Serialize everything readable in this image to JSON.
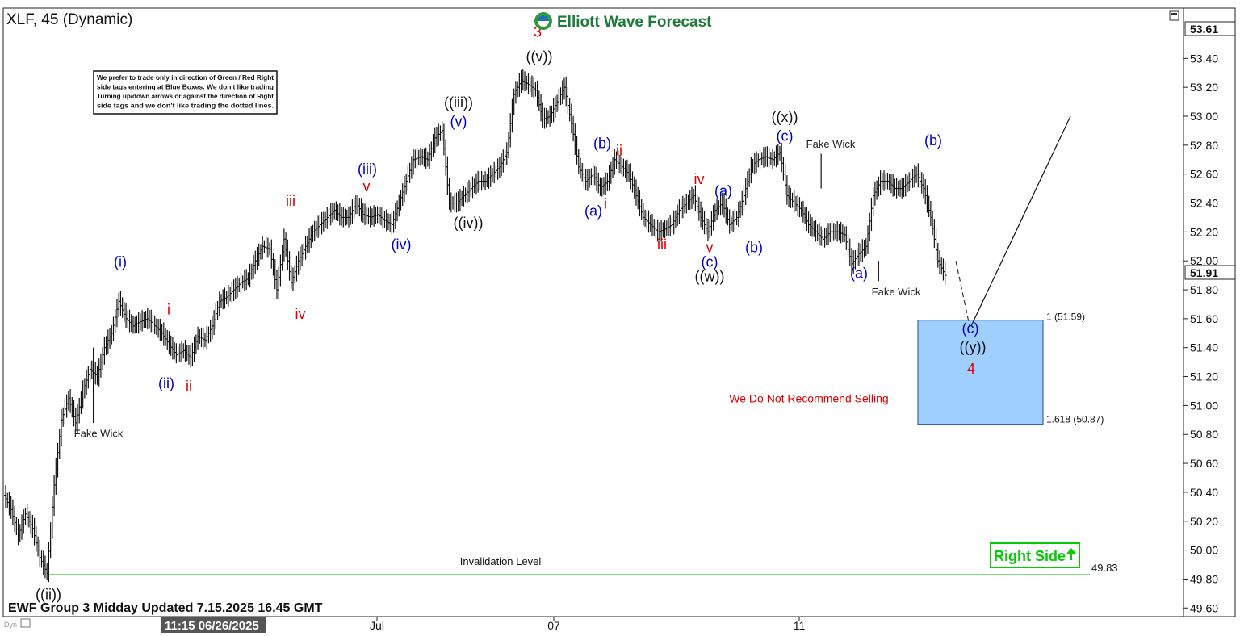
{
  "header": {
    "symbol_title": "XLF, 45 (Dynamic)",
    "brand": "Elliott Wave Forecast"
  },
  "note_box": {
    "lines": [
      "We prefer to trade only in direction of Green / Red Right",
      "side tags entering at Blue Boxes. We don't like trading",
      "Turning up/down arrows or against the direction of Right",
      "side tags and we don't like trading the dotted lines."
    ]
  },
  "footer": {
    "update_label": "EWF Group 3 Midday Updated 7.15.2025 16.45 GMT",
    "cursor_time": "11:15 06/26/2025",
    "corner_label": "Dyn"
  },
  "right_side_tag": {
    "label": "Right Side",
    "color": "#00cc00"
  },
  "colors": {
    "blue_label": "#0000cc",
    "red_label": "#dd0000",
    "black_label": "#111111",
    "box_fill": "#9fcfff",
    "box_border": "#1a4d99",
    "invalidation_line": "#33cc33"
  },
  "chart_data": {
    "type": "candlestick",
    "title": "XLF, 45 (Dynamic)",
    "ylim": [
      49.6,
      53.7
    ],
    "y_ticks": [
      "53.40",
      "53.20",
      "53.00",
      "52.80",
      "52.60",
      "52.40",
      "52.20",
      "52.00",
      "51.80",
      "51.60",
      "51.40",
      "51.20",
      "51.00",
      "50.80",
      "50.60",
      "50.40",
      "50.20",
      "50.00",
      "49.80",
      "49.60"
    ],
    "x_tick_labels": [
      "Jul",
      "07",
      "11"
    ],
    "price_tags": {
      "top": "53.61",
      "current": "51.91"
    },
    "price_path": [
      [
        0,
        50.38
      ],
      [
        1,
        50.28
      ],
      [
        2,
        50.1
      ],
      [
        3,
        50.25
      ],
      [
        4,
        50.15
      ],
      [
        5,
        49.95
      ],
      [
        6,
        49.84
      ],
      [
        7,
        50.45
      ],
      [
        8,
        50.9
      ],
      [
        9,
        51.05
      ],
      [
        10,
        50.88
      ],
      [
        11,
        51.1
      ],
      [
        12,
        51.25
      ],
      [
        13,
        51.2
      ],
      [
        14,
        51.4
      ],
      [
        15,
        51.5
      ],
      [
        16,
        51.72
      ],
      [
        17,
        51.6
      ],
      [
        18,
        51.55
      ],
      [
        19,
        51.58
      ],
      [
        20,
        51.6
      ],
      [
        21,
        51.55
      ],
      [
        22,
        51.5
      ],
      [
        23,
        51.42
      ],
      [
        24,
        51.35
      ],
      [
        25,
        51.38
      ],
      [
        26,
        51.33
      ],
      [
        27,
        51.48
      ],
      [
        28,
        51.45
      ],
      [
        29,
        51.55
      ],
      [
        30,
        51.72
      ],
      [
        31,
        51.75
      ],
      [
        32,
        51.8
      ],
      [
        33,
        51.85
      ],
      [
        34,
        51.88
      ],
      [
        35,
        52.0
      ],
      [
        36,
        52.1
      ],
      [
        37,
        52.08
      ],
      [
        38,
        51.8
      ],
      [
        39,
        52.15
      ],
      [
        40,
        51.85
      ],
      [
        41,
        52.0
      ],
      [
        42,
        52.1
      ],
      [
        43,
        52.2
      ],
      [
        44,
        52.25
      ],
      [
        45,
        52.3
      ],
      [
        46,
        52.35
      ],
      [
        47,
        52.3
      ],
      [
        48,
        52.3
      ],
      [
        49,
        52.4
      ],
      [
        50,
        52.32
      ],
      [
        51,
        52.3
      ],
      [
        52,
        52.32
      ],
      [
        53,
        52.28
      ],
      [
        54,
        52.25
      ],
      [
        55,
        52.4
      ],
      [
        56,
        52.55
      ],
      [
        57,
        52.7
      ],
      [
        58,
        52.72
      ],
      [
        59,
        52.7
      ],
      [
        60,
        52.85
      ],
      [
        61,
        52.9
      ],
      [
        62,
        52.4
      ],
      [
        63,
        52.4
      ],
      [
        64,
        52.45
      ],
      [
        65,
        52.5
      ],
      [
        66,
        52.55
      ],
      [
        67,
        52.55
      ],
      [
        68,
        52.6
      ],
      [
        69,
        52.65
      ],
      [
        70,
        52.75
      ],
      [
        71,
        53.15
      ],
      [
        72,
        53.25
      ],
      [
        73,
        53.22
      ],
      [
        74,
        53.18
      ],
      [
        75,
        52.98
      ],
      [
        76,
        53.0
      ],
      [
        77,
        53.1
      ],
      [
        78,
        53.2
      ],
      [
        79,
        52.95
      ],
      [
        80,
        52.65
      ],
      [
        81,
        52.55
      ],
      [
        82,
        52.6
      ],
      [
        83,
        52.5
      ],
      [
        84,
        52.55
      ],
      [
        85,
        52.7
      ],
      [
        86,
        52.65
      ],
      [
        87,
        52.6
      ],
      [
        88,
        52.45
      ],
      [
        89,
        52.3
      ],
      [
        90,
        52.25
      ],
      [
        91,
        52.2
      ],
      [
        92,
        52.22
      ],
      [
        93,
        52.25
      ],
      [
        94,
        52.35
      ],
      [
        95,
        52.4
      ],
      [
        96,
        52.45
      ],
      [
        97,
        52.3
      ],
      [
        98,
        52.2
      ],
      [
        99,
        52.35
      ],
      [
        100,
        52.4
      ],
      [
        101,
        52.25
      ],
      [
        102,
        52.3
      ],
      [
        103,
        52.45
      ],
      [
        104,
        52.65
      ],
      [
        105,
        52.7
      ],
      [
        106,
        52.72
      ],
      [
        107,
        52.7
      ],
      [
        108,
        52.75
      ],
      [
        109,
        52.45
      ],
      [
        110,
        52.4
      ],
      [
        111,
        52.35
      ],
      [
        112,
        52.25
      ],
      [
        113,
        52.2
      ],
      [
        114,
        52.15
      ],
      [
        115,
        52.2
      ],
      [
        116,
        52.2
      ],
      [
        117,
        52.18
      ],
      [
        118,
        51.98
      ],
      [
        119,
        52.05
      ],
      [
        120,
        52.1
      ],
      [
        121,
        52.45
      ],
      [
        122,
        52.55
      ],
      [
        123,
        52.55
      ],
      [
        124,
        52.5
      ],
      [
        125,
        52.5
      ],
      [
        126,
        52.55
      ],
      [
        127,
        52.6
      ],
      [
        128,
        52.5
      ],
      [
        129,
        52.3
      ],
      [
        130,
        52.0
      ],
      [
        131,
        51.9
      ]
    ],
    "boxes": [
      {
        "name": "blue-box",
        "y_top": 51.59,
        "y_bottom": 50.87,
        "label_top": "1 (51.59)",
        "label_bottom": "1.618 (50.87)"
      }
    ],
    "invalidation": {
      "level": 49.83,
      "label": "Invalidation Level",
      "value_label": "49.83"
    },
    "wave_labels": [
      {
        "text": "((ii))",
        "color": "black",
        "x": 6,
        "y": 49.66
      },
      {
        "text": "(i)",
        "color": "blue",
        "x": 16,
        "y": 51.96
      },
      {
        "text": "(ii)",
        "color": "blue",
        "x": 22,
        "y": 51.12
      },
      {
        "text": "i",
        "color": "red",
        "x": 23,
        "y": 51.63
      },
      {
        "text": "ii",
        "color": "red",
        "x": 26,
        "y": 51.1
      },
      {
        "text": "iii",
        "color": "red",
        "x": 40,
        "y": 52.38
      },
      {
        "text": "iv",
        "color": "red",
        "x": 41,
        "y": 51.6
      },
      {
        "text": "(iii)",
        "color": "blue",
        "x": 51,
        "y": 52.6
      },
      {
        "text": "v",
        "color": "red",
        "x": 51,
        "y": 52.48
      },
      {
        "text": "(iv)",
        "color": "blue",
        "x": 56,
        "y": 52.08
      },
      {
        "text": "((iii))",
        "color": "black",
        "x": 62,
        "y": 53.06
      },
      {
        "text": "(v)",
        "color": "blue",
        "x": 62,
        "y": 52.93
      },
      {
        "text": "((iv))",
        "color": "black",
        "x": 64,
        "y": 52.23
      },
      {
        "text": "3",
        "color": "red",
        "x": 74,
        "y": 53.55
      },
      {
        "text": "((v))",
        "color": "black",
        "x": 74,
        "y": 53.38
      },
      {
        "text": "(b)",
        "color": "blue",
        "x": 83,
        "y": 52.78
      },
      {
        "text": "ii",
        "color": "red",
        "x": 85,
        "y": 52.73
      },
      {
        "text": "(a)",
        "color": "blue",
        "x": 82,
        "y": 52.31
      },
      {
        "text": "i",
        "color": "red",
        "x": 83,
        "y": 52.36
      },
      {
        "text": "iii",
        "color": "red",
        "x": 91,
        "y": 52.08
      },
      {
        "text": "iv",
        "color": "red",
        "x": 96,
        "y": 52.53
      },
      {
        "text": "(a)",
        "color": "blue",
        "x": 100,
        "y": 52.45
      },
      {
        "text": "v",
        "color": "red",
        "x": 98,
        "y": 52.06
      },
      {
        "text": "(c)",
        "color": "blue",
        "x": 98,
        "y": 51.96
      },
      {
        "text": "((w))",
        "color": "black",
        "x": 98,
        "y": 51.86
      },
      {
        "text": "(b)",
        "color": "blue",
        "x": 104,
        "y": 52.06
      },
      {
        "text": "((x))",
        "color": "black",
        "x": 108,
        "y": 52.96
      },
      {
        "text": "(c)",
        "color": "blue",
        "x": 108,
        "y": 52.83
      },
      {
        "text": "(a)",
        "color": "blue",
        "x": 118,
        "y": 51.88
      },
      {
        "text": "(b)",
        "color": "blue",
        "x": 128,
        "y": 52.8
      },
      {
        "text": "(c)",
        "color": "blue",
        "x": 133,
        "y": 51.5
      },
      {
        "text": "((y))",
        "color": "black",
        "x": 133,
        "y": 51.37
      },
      {
        "text": "4",
        "color": "red",
        "x": 133,
        "y": 51.22
      }
    ],
    "annotations": [
      {
        "text": "Fake Wick",
        "x": 13,
        "y": 50.81
      },
      {
        "text": "Fake Wick",
        "x": 114,
        "y": 52.81
      },
      {
        "text": "Fake Wick",
        "x": 123,
        "y": 51.79
      },
      {
        "text": "We Do Not Recommend Selling",
        "x": 110,
        "y": 51.05,
        "color": "red"
      }
    ],
    "projection": {
      "dashed": [
        [
          131,
          52.0
        ],
        [
          133,
          51.55
        ]
      ],
      "solid": [
        [
          133,
          51.55
        ],
        [
          147,
          53.0
        ]
      ]
    }
  }
}
